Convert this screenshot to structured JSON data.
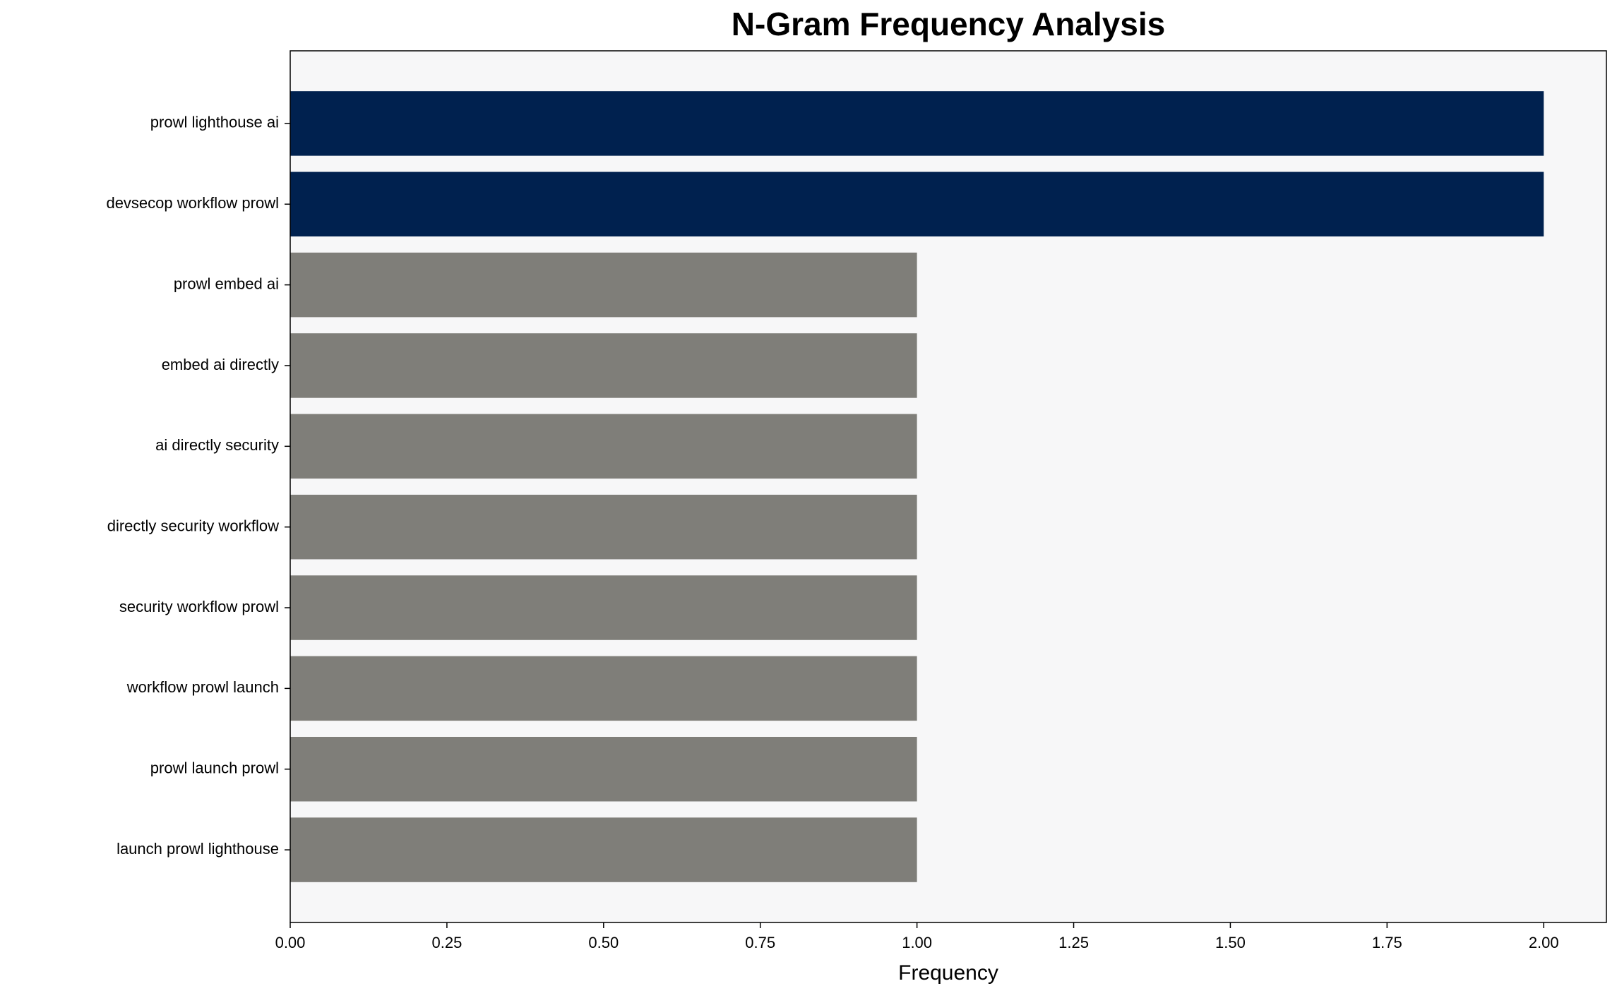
{
  "chart_data": {
    "type": "barh",
    "title": "N-Gram Frequency Analysis",
    "x_label": "Frequency",
    "categories": [
      "prowl lighthouse ai",
      "devsecop workflow prowl",
      "prowl embed ai",
      "embed ai directly",
      "ai directly security",
      "directly security workflow",
      "security workflow prowl",
      "workflow prowl launch",
      "prowl launch prowl",
      "launch prowl lighthouse"
    ],
    "values": [
      2,
      2,
      1,
      1,
      1,
      1,
      1,
      1,
      1,
      1
    ],
    "colors": [
      "#00214f",
      "#00214f",
      "#7f7e79",
      "#7f7e79",
      "#7f7e79",
      "#7f7e79",
      "#7f7e79",
      "#7f7e79",
      "#7f7e79",
      "#7f7e79"
    ],
    "xlim": [
      0,
      2.1
    ],
    "xticks": [
      {
        "value": 0,
        "label": "0.00"
      },
      {
        "value": 0.25,
        "label": "0.25"
      },
      {
        "value": 0.5,
        "label": "0.50"
      },
      {
        "value": 0.75,
        "label": "0.75"
      },
      {
        "value": 1,
        "label": "1.00"
      },
      {
        "value": 1.25,
        "label": "1.25"
      },
      {
        "value": 1.5,
        "label": "1.50"
      },
      {
        "value": 1.75,
        "label": "1.75"
      },
      {
        "value": 2,
        "label": "2.00"
      }
    ],
    "plot_background": "#f7f7f8"
  }
}
